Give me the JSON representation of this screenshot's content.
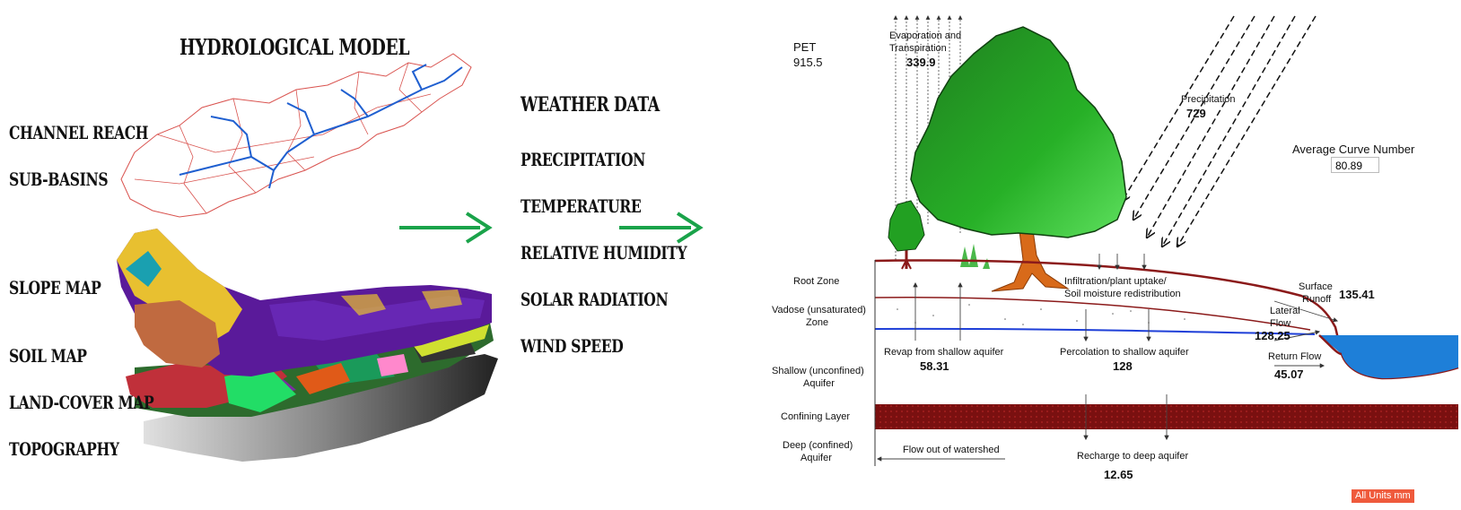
{
  "left": {
    "title": "HYDROLOGICAL MODEL",
    "labels": {
      "channel_reach": "CHANNEL REACH",
      "sub_basins": "SUB-BASINS",
      "slope_map": "SLOPE MAP",
      "soil_map": "SOIL MAP",
      "land_cover_map": "LAND-COVER MAP",
      "topography": "TOPOGRAPHY"
    }
  },
  "weather": {
    "title": "WEATHER DATA",
    "items": [
      "PRECIPITATION",
      "TEMPERATURE",
      "RELATIVE HUMIDITY",
      "SOLAR RADIATION",
      "WIND SPEED"
    ]
  },
  "water_balance": {
    "pet_label": "PET",
    "pet_value": "915.5",
    "et_label_1": "Evaporation and",
    "et_label_2": "Transpiration",
    "et_value": "339.9",
    "precip_label": "Precipitation",
    "precip_value": "729",
    "curve_number_label": "Average Curve Number",
    "curve_number_value": "80.89",
    "root_zone": "Root Zone",
    "vadose_1": "Vadose (unsaturated)",
    "vadose_2": "Zone",
    "shallow_1": "Shallow (unconfined)",
    "shallow_2": "Aquifer",
    "confining": "Confining Layer",
    "deep_1": "Deep (confined)",
    "deep_2": "Aquifer",
    "infiltration_1": "Infiltration/plant uptake/",
    "infiltration_2": "Soil moisture redistribution",
    "surface_runoff_1": "Surface",
    "surface_runoff_2": "Runoff",
    "surface_runoff_value": "135.41",
    "lateral_flow_1": "Lateral",
    "lateral_flow_2": "Flow",
    "lateral_flow_value": "128.25",
    "return_flow": "Return Flow",
    "return_flow_value": "45.07",
    "revap_label": "Revap from shallow aquifer",
    "revap_value": "58.31",
    "percolation_label": "Percolation to shallow aquifer",
    "percolation_value": "128",
    "flow_out": "Flow out of watershed",
    "recharge_label": "Recharge to deep aquifer",
    "recharge_value": "12.65",
    "units": "All Units mm"
  },
  "colors": {
    "arrow_green": "#1aa34a",
    "tree_green": "#22a022",
    "soil_line": "#8b1a1a",
    "water_blue": "#1e7fd8",
    "confining": "#7a1010",
    "units_bg": "#ef5a3c"
  }
}
